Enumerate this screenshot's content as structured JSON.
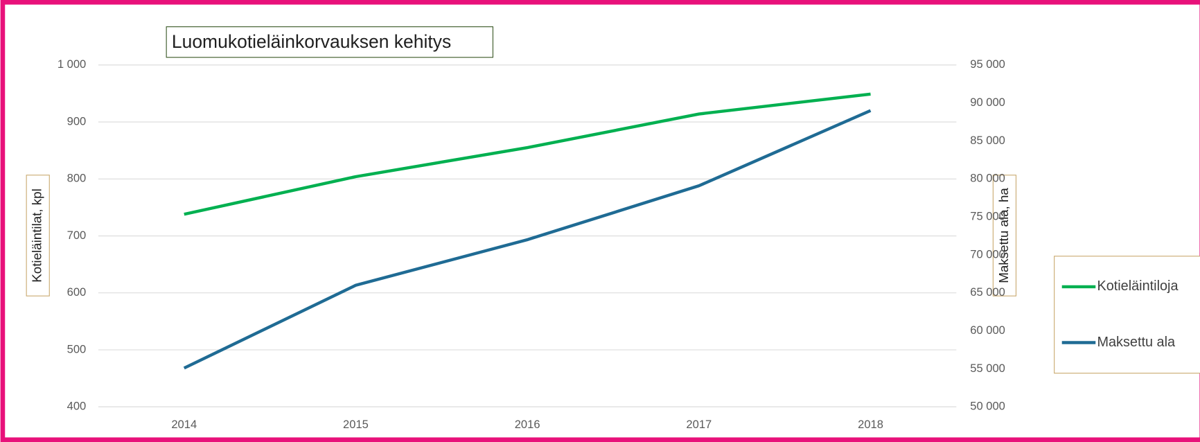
{
  "chart_data": {
    "type": "line",
    "title": "Luomukotieläinkorvauksen kehitys",
    "y_label": "Kotieläintilat, kpl",
    "y2_label": "Maksettu ala, ha",
    "categories": [
      "2014",
      "2015",
      "2016",
      "2017",
      "2018"
    ],
    "series": [
      {
        "name": "Kotieläintiloja",
        "color": "#00b050",
        "values": [
          738,
          804,
          855,
          914,
          949
        ]
      },
      {
        "name": "Maksettu ala",
        "color": "#1f6b94",
        "axis": "y2",
        "values": [
          55100,
          66000,
          72000,
          79100,
          89000
        ]
      }
    ],
    "ylim": [
      400,
      1000
    ],
    "yticks": [
      400,
      500,
      600,
      700,
      800,
      900,
      {
        "value": 1000,
        "label": "1 000"
      }
    ],
    "y2lim": [
      50000,
      95000
    ],
    "y2ticks": [
      {
        "value": 50000,
        "label": "50 000"
      },
      {
        "value": 55000,
        "label": "55 000"
      },
      {
        "value": 60000,
        "label": "60 000"
      },
      {
        "value": 65000,
        "label": "65 000"
      },
      {
        "value": 70000,
        "label": "70 000"
      },
      {
        "value": 75000,
        "label": "75 000"
      },
      {
        "value": 80000,
        "label": "80 000"
      },
      {
        "value": 85000,
        "label": "85 000"
      },
      {
        "value": 90000,
        "label": "90 000"
      },
      {
        "value": 95000,
        "label": "95 000"
      }
    ],
    "grid": true
  }
}
